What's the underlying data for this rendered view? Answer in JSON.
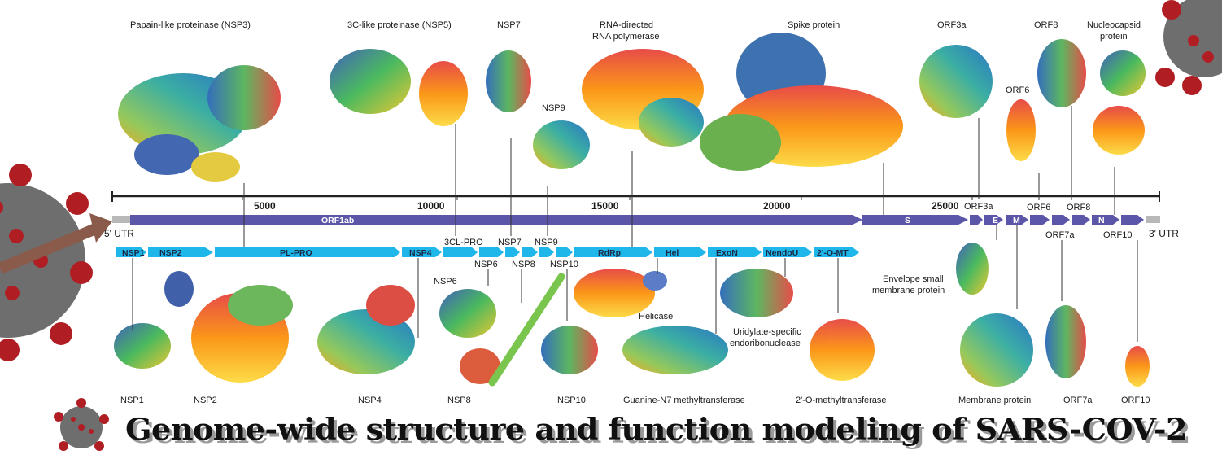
{
  "title": "Genome-wide structure and function modeling of SARS-COV-2",
  "colors": {
    "orf_bar": "#5b56a8",
    "nsp_bar": "#1fb6ea",
    "utr": "#b8b8b8",
    "virus": "#b01e24",
    "virus_body": "#6e6e6e"
  },
  "axis": {
    "ticks": [
      "5000",
      "10000",
      "15000",
      "20000",
      "25000"
    ]
  },
  "utr": {
    "five": "5' UTR",
    "three": "3' UTR"
  },
  "genome_segments": [
    "ORF1ab",
    "S",
    "E",
    "M",
    "N"
  ],
  "nsp_segments": [
    "NSP1",
    "NSP2",
    "PL-PRO",
    "NSP4",
    "RdRp",
    "Hel",
    "ExoN",
    "NendoU",
    "2'-O-MT"
  ],
  "mid_labels": [
    "3CL-PRO",
    "NSP7",
    "NSP9",
    "NSP6",
    "NSP8",
    "NSP10",
    "ORF3a",
    "ORF6",
    "ORF8",
    "ORF7a",
    "ORF10"
  ],
  "top_labels": {
    "nsp3": "Papain-like proteinase (NSP3)",
    "nsp5": "3C-like proteinase (NSP5)",
    "nsp7": "NSP7",
    "rdrp1": "RNA-directed",
    "rdrp2": "RNA polymerase",
    "spike": "Spike protein",
    "orf3a": "ORF3a",
    "orf8": "ORF8",
    "nuc1": "Nucleocapsid",
    "nuc2": "protein",
    "nsp9": "NSP9",
    "orf6": "ORF6"
  },
  "bottom_labels": {
    "nsp6": "NSP6",
    "helicase": "Helicase",
    "env1": "Envelope small",
    "env2": "membrane protein",
    "uri1": "Uridylate-specific",
    "uri2": "endoribonuclease",
    "nsp1": "NSP1",
    "nsp2": "NSP2",
    "nsp4": "NSP4",
    "nsp8": "NSP8",
    "nsp10": "NSP10",
    "guanine": "Guanine-N7 methyltransferase",
    "omt": "2'-O-methyltransferase",
    "membrane": "Membrane protein",
    "orf7a": "ORF7a",
    "orf10": "ORF10"
  }
}
